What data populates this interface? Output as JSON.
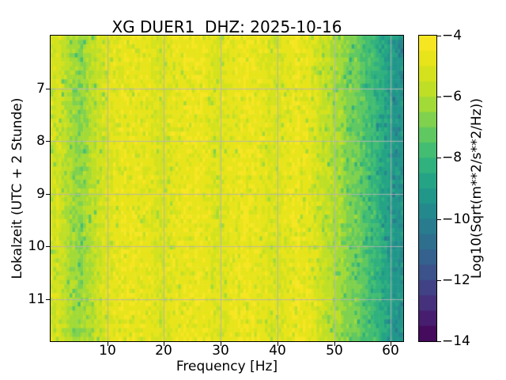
{
  "title": "XG DUER1  DHZ: 2025-10-16",
  "x_axis": {
    "label": "Frequency [Hz]",
    "tick_labels": [
      "10",
      "20",
      "30",
      "40",
      "50",
      "60"
    ],
    "tick_values": [
      10,
      20,
      30,
      40,
      50,
      60
    ]
  },
  "y_axis": {
    "label": "Lokalzeit (UTC + 2 Stunde)",
    "tick_labels": [
      "7",
      "8",
      "9",
      "10",
      "11"
    ],
    "tick_values": [
      7,
      8,
      9,
      10,
      11
    ]
  },
  "colorbar": {
    "label": "Log10(Sqrt(m**2/s**2/Hz))",
    "tick_labels": [
      "−4",
      "−6",
      "−8",
      "−10",
      "−12",
      "−14"
    ],
    "tick_values": [
      -4,
      -6,
      -8,
      -10,
      -12,
      -14
    ],
    "vmin": -14,
    "vmax": -4,
    "n_bands": 20
  },
  "chart_data": {
    "type": "heatmap",
    "title": "XG DUER1  DHZ: 2025-10-16",
    "station": "XG DUER1 DHZ",
    "date": "2025-10-16",
    "xlabel": "Frequency [Hz]",
    "ylabel": "Lokalzeit (UTC + 2 Stunde)",
    "zlabel": "Log10(Sqrt(m**2/s**2/Hz))",
    "colormap": "viridis",
    "grid": true,
    "grid_color": "#b2b2b2",
    "x_range": [
      0,
      62.2
    ],
    "y_range": [
      6.0,
      11.8
    ],
    "z_range": [
      -14,
      -4
    ],
    "z_quantize_step": 0.5,
    "profile_freq_hz": [
      0,
      1,
      2,
      3,
      4,
      5,
      6,
      7,
      8,
      9,
      10,
      11,
      12,
      13,
      14,
      15,
      16,
      17,
      18,
      19,
      20,
      21,
      22,
      23,
      24,
      25,
      26,
      27,
      28,
      29,
      30,
      31,
      32,
      33,
      34,
      35,
      36,
      37,
      38,
      39,
      40,
      41,
      42,
      43,
      44,
      45,
      46,
      47,
      48,
      49,
      50,
      51,
      52,
      53,
      54,
      55,
      56,
      57,
      58,
      59,
      60,
      61,
      62
    ],
    "profile_level": [
      -5.4,
      -5.2,
      -5.4,
      -5.9,
      -6.3,
      -6.5,
      -6.4,
      -6.0,
      -5.6,
      -5.3,
      -5.1,
      -4.9,
      -4.8,
      -4.7,
      -4.6,
      -4.6,
      -4.6,
      -4.7,
      -4.9,
      -5.1,
      -5.2,
      -4.9,
      -4.7,
      -4.6,
      -4.6,
      -4.6,
      -4.6,
      -4.7,
      -4.9,
      -5.1,
      -5.1,
      -4.9,
      -4.7,
      -4.6,
      -4.6,
      -4.6,
      -4.6,
      -4.7,
      -4.9,
      -5.1,
      -5.2,
      -4.9,
      -4.7,
      -4.6,
      -4.6,
      -4.7,
      -4.9,
      -5.2,
      -5.5,
      -5.8,
      -6.0,
      -6.2,
      -6.5,
      -6.8,
      -7.0,
      -7.3,
      -7.6,
      -7.9,
      -8.2,
      -8.6,
      -8.9,
      -9.3,
      -9.4
    ],
    "noise_std": 0.55,
    "speckle_chance": 0.1
  }
}
